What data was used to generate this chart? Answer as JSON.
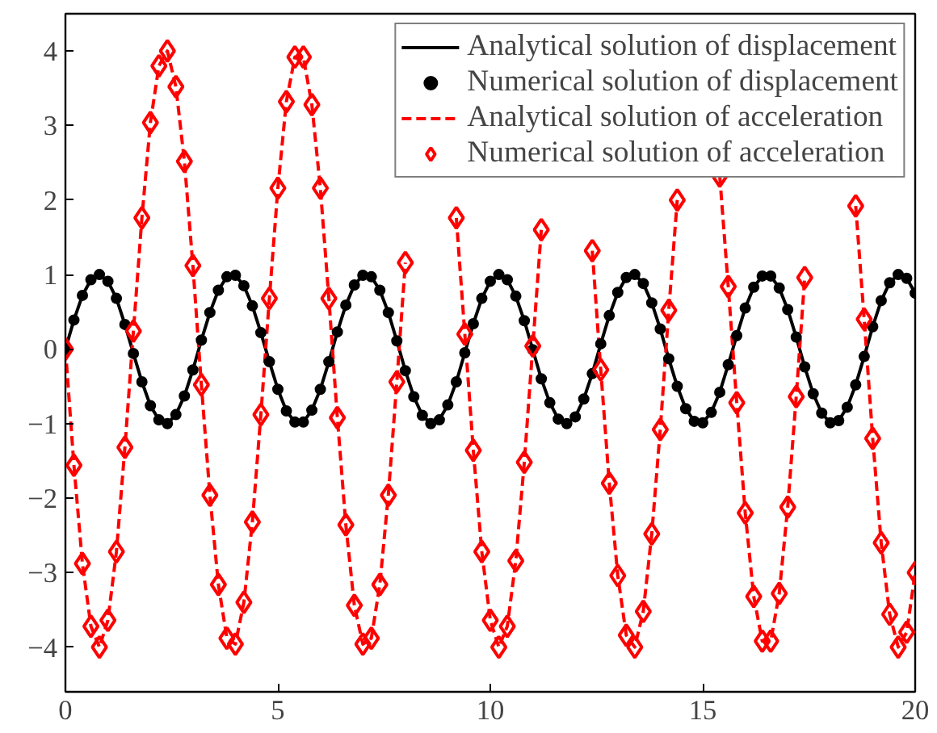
{
  "chart_data": {
    "type": "line",
    "x": [
      0,
      0.2,
      0.4,
      0.6,
      0.8,
      1,
      1.2,
      1.4,
      1.6,
      1.8,
      2,
      2.2,
      2.4,
      2.6,
      2.8,
      3,
      3.2,
      3.4,
      3.6,
      3.8,
      4,
      4.2,
      4.4,
      4.6,
      4.8,
      5,
      5.2,
      5.4,
      5.6,
      5.8,
      6,
      6.2,
      6.4,
      6.6,
      6.8,
      7,
      7.2,
      7.4,
      7.6,
      7.8,
      8,
      8.2,
      8.4,
      8.6,
      8.8,
      9,
      9.2,
      9.4,
      9.6,
      9.8,
      10,
      10.2,
      10.4,
      10.6,
      10.8,
      11,
      11.2,
      11.4,
      11.6,
      11.8,
      12,
      12.2,
      12.4,
      12.6,
      12.8,
      13,
      13.2,
      13.4,
      13.6,
      13.8,
      14,
      14.2,
      14.4,
      14.6,
      14.8,
      15,
      15.2,
      15.4,
      15.6,
      15.8,
      16,
      16.2,
      16.4,
      16.6,
      16.8,
      17,
      17.2,
      17.4,
      17.6,
      17.8,
      18,
      18.2,
      18.4,
      18.6,
      18.8,
      19,
      19.2,
      19.4,
      19.6,
      19.8,
      20
    ],
    "series": [
      {
        "name": "Analytical solution of displacement",
        "color": "#000000",
        "line_style": "solid",
        "marker": "none",
        "values": [
          0,
          0.39,
          0.72,
          0.93,
          1.0,
          0.91,
          0.68,
          0.33,
          -0.06,
          -0.44,
          -0.76,
          -0.95,
          -1.0,
          -0.88,
          -0.63,
          -0.28,
          0.12,
          0.49,
          0.79,
          0.97,
          0.99,
          0.85,
          0.58,
          0.22,
          -0.17,
          -0.54,
          -0.83,
          -0.98,
          -0.98,
          -0.82,
          -0.54,
          -0.17,
          0.23,
          0.59,
          0.86,
          0.99,
          0.97,
          0.79,
          0.49,
          0.11,
          -0.29,
          -0.64,
          -0.89,
          -1.0,
          -0.95,
          -0.75,
          -0.44,
          -0.05,
          0.34,
          0.68,
          0.91,
          1.0,
          0.93,
          0.71,
          0.38,
          -0.01,
          -0.4,
          -0.72,
          -0.94,
          -1.0,
          -0.91,
          -0.67,
          -0.33,
          0.07,
          0.45,
          0.76,
          0.96,
          1.0,
          0.88,
          0.62,
          0.27,
          -0.13,
          -0.5,
          -0.8,
          -0.97,
          -0.99,
          -0.85,
          -0.58,
          -0.21,
          0.18,
          0.55,
          0.83,
          0.98,
          0.98,
          0.82,
          0.53,
          0.16,
          -0.24,
          -0.6,
          -0.86,
          -0.99,
          -0.96,
          -0.78,
          -0.48,
          -0.1,
          0.3,
          0.65,
          0.89,
          1.0,
          0.95,
          0.75
        ]
      },
      {
        "name": "Numerical solution of displacement",
        "type": "scatter",
        "color": "#000000",
        "marker": "circle",
        "values": [
          0,
          0.39,
          0.72,
          0.93,
          1.0,
          0.91,
          0.68,
          0.33,
          -0.06,
          -0.44,
          -0.76,
          -0.95,
          -1.0,
          -0.88,
          -0.63,
          -0.28,
          0.12,
          0.49,
          0.79,
          0.97,
          0.99,
          0.85,
          0.58,
          0.22,
          -0.17,
          -0.54,
          -0.83,
          -0.98,
          -0.98,
          -0.82,
          -0.54,
          -0.17,
          0.23,
          0.59,
          0.86,
          0.99,
          0.97,
          0.79,
          0.49,
          0.11,
          -0.29,
          -0.64,
          -0.89,
          -1.0,
          -0.95,
          -0.75,
          -0.44,
          -0.05,
          0.34,
          0.68,
          0.91,
          1.0,
          0.93,
          0.71,
          0.38,
          -0.01,
          -0.4,
          -0.72,
          -0.94,
          -1.0,
          -0.91,
          -0.67,
          -0.33,
          0.07,
          0.45,
          0.76,
          0.96,
          1.0,
          0.88,
          0.62,
          0.27,
          -0.13,
          -0.5,
          -0.8,
          -0.97,
          -0.99,
          -0.85,
          -0.58,
          -0.21,
          0.18,
          0.55,
          0.83,
          0.98,
          0.98,
          0.82,
          0.53,
          0.16,
          -0.24,
          -0.6,
          -0.86,
          -0.99,
          -0.96,
          -0.78,
          -0.48,
          -0.1,
          0.3,
          0.65,
          0.89,
          1.0,
          0.95,
          0.75
        ]
      },
      {
        "name": "Analytical solution of acceleration",
        "color": "#ff0000",
        "line_style": "dashed",
        "marker": "none",
        "values": [
          0,
          -1.56,
          -2.88,
          -3.72,
          -4.0,
          -3.64,
          -2.72,
          -1.32,
          0.24,
          1.76,
          3.04,
          3.8,
          4.0,
          3.52,
          2.52,
          1.12,
          -0.48,
          -1.96,
          -3.16,
          -3.88,
          -3.96,
          -3.4,
          -2.32,
          -0.88,
          0.68,
          2.16,
          3.32,
          3.92,
          3.92,
          3.28,
          2.16,
          0.68,
          -0.92,
          -2.36,
          -3.44,
          -3.96,
          -3.88,
          -3.16,
          -1.96,
          -0.44,
          1.16,
          null,
          null,
          null,
          null,
          null,
          1.76,
          0.2,
          -1.36,
          -2.72,
          -3.64,
          -4.0,
          -3.72,
          -2.84,
          -1.52,
          0.04,
          1.6,
          null,
          null,
          null,
          null,
          null,
          1.32,
          -0.28,
          -1.8,
          -3.04,
          -3.84,
          -4.0,
          -3.52,
          -2.48,
          -1.08,
          0.52,
          2.0,
          null,
          null,
          null,
          null,
          2.32,
          0.84,
          -0.72,
          -2.2,
          -3.32,
          -3.92,
          -3.92,
          -3.28,
          -2.12,
          -0.64,
          0.96,
          null,
          null,
          null,
          null,
          null,
          1.92,
          0.4,
          -1.2,
          -2.6,
          -3.56,
          -4.0,
          -3.8,
          -3.0
        ]
      },
      {
        "name": "Numerical solution of acceleration",
        "type": "scatter",
        "color": "#ff0000",
        "marker": "diamond",
        "values": [
          0,
          -1.56,
          -2.88,
          -3.72,
          -4.0,
          -3.64,
          -2.72,
          -1.32,
          0.24,
          1.76,
          3.04,
          3.8,
          4.0,
          3.52,
          2.52,
          1.12,
          -0.48,
          -1.96,
          -3.16,
          -3.88,
          -3.96,
          -3.4,
          -2.32,
          -0.88,
          0.68,
          2.16,
          3.32,
          3.92,
          3.92,
          3.28,
          2.16,
          0.68,
          -0.92,
          -2.36,
          -3.44,
          -3.96,
          -3.88,
          -3.16,
          -1.96,
          -0.44,
          1.16,
          null,
          null,
          null,
          null,
          null,
          1.76,
          0.2,
          -1.36,
          -2.72,
          -3.64,
          -4.0,
          -3.72,
          -2.84,
          -1.52,
          0.04,
          1.6,
          null,
          null,
          null,
          null,
          null,
          1.32,
          -0.28,
          -1.8,
          -3.04,
          -3.84,
          -4.0,
          -3.52,
          -2.48,
          -1.08,
          0.52,
          2.0,
          null,
          null,
          null,
          null,
          2.32,
          0.84,
          -0.72,
          -2.2,
          -3.32,
          -3.92,
          -3.92,
          -3.28,
          -2.12,
          -0.64,
          0.96,
          null,
          null,
          null,
          null,
          null,
          1.92,
          0.4,
          -1.2,
          -2.6,
          -3.56,
          -4.0,
          -3.8,
          -3.0
        ]
      }
    ],
    "xlim": [
      0,
      20
    ],
    "xticks": [
      0,
      5,
      10,
      15,
      20
    ],
    "ylim": [
      -4.6,
      4.5
    ],
    "yticks": [
      -4,
      -3,
      -2,
      -1,
      0,
      1,
      2,
      3,
      4
    ],
    "grid": false,
    "legend": "top right"
  }
}
